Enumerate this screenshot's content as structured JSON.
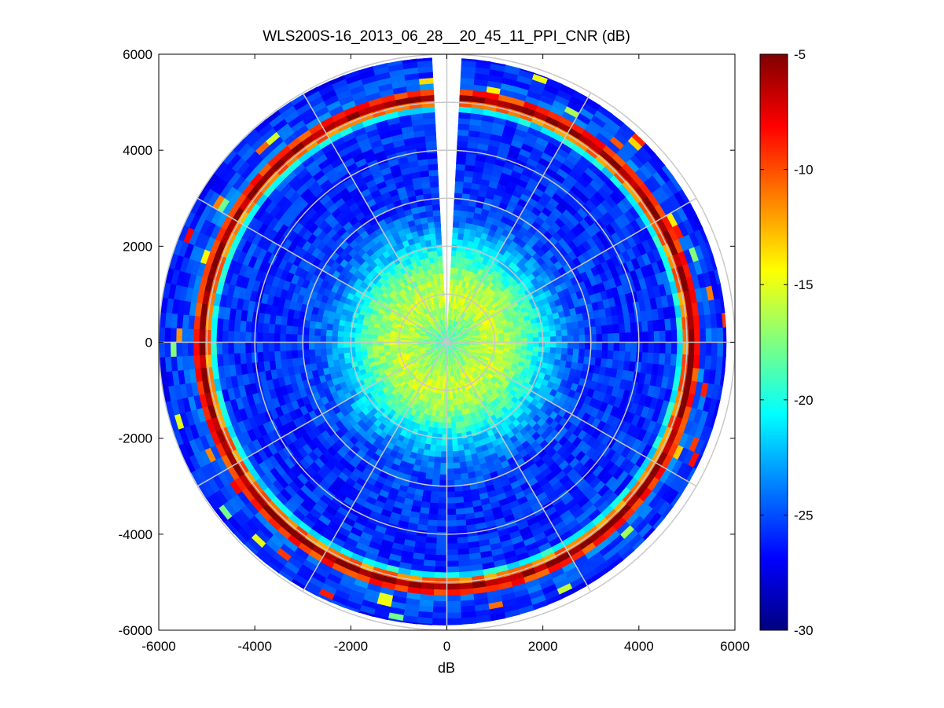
{
  "chart_data": {
    "type": "heatmap",
    "subtype": "polar-ppi",
    "title": "WLS200S-16_2013_06_28__20_45_11_PPI_CNR (dB)",
    "xlabel": "dB",
    "ylabel": "",
    "xlim": [
      -6000,
      6000
    ],
    "ylim": [
      -6000,
      6000
    ],
    "xticks": [
      "-6000",
      "-4000",
      "-2000",
      "0",
      "2000",
      "4000",
      "6000"
    ],
    "yticks": [
      "6000",
      "4000",
      "2000",
      "0",
      "-2000",
      "-4000",
      "-6000"
    ],
    "max_range": 6000,
    "range_rings": [
      1000,
      2000,
      3000,
      4000,
      5000,
      6000
    ],
    "spoke_angles_deg": [
      0,
      30,
      60,
      90,
      120,
      150,
      180,
      210,
      240,
      270,
      300,
      330
    ],
    "colormap": "jet",
    "clim": [
      -30,
      -5
    ],
    "colorbar_ticks": [
      "-5",
      "-10",
      "-15",
      "-20",
      "-25",
      "-30"
    ],
    "gap_sector_deg": [
      -4,
      4
    ],
    "profile": [
      {
        "range": 0,
        "cnr": -19.5
      },
      {
        "range": 500,
        "cnr": -17
      },
      {
        "range": 1000,
        "cnr": -15.5
      },
      {
        "range": 1500,
        "cnr": -17.5
      },
      {
        "range": 2000,
        "cnr": -21
      },
      {
        "range": 2500,
        "cnr": -24
      },
      {
        "range": 3000,
        "cnr": -25.5
      },
      {
        "range": 4000,
        "cnr": -26
      },
      {
        "range": 4800,
        "cnr": -25.5
      },
      {
        "range": 5050,
        "cnr": -5.5
      },
      {
        "range": 5200,
        "cnr": -5.5
      },
      {
        "range": 5300,
        "cnr": -24.5
      },
      {
        "range": 6000,
        "cnr": -26.5
      }
    ]
  }
}
